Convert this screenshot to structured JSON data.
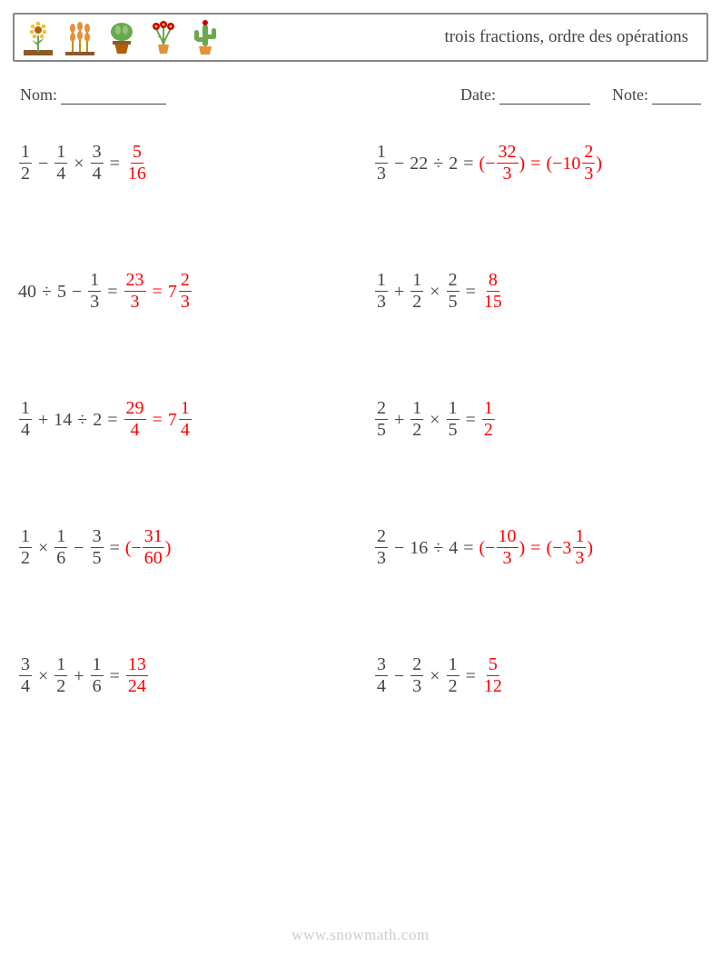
{
  "header": {
    "title": "trois fractions, ordre des opérations"
  },
  "meta": {
    "name_label": "Nom:",
    "date_label": "Date:",
    "note_label": "Note:",
    "name_underline_width": 116,
    "date_underline_width": 100,
    "note_underline_width": 54
  },
  "problems": [
    {
      "expr": [
        {
          "t": "frac",
          "n": "1",
          "d": "2"
        },
        {
          "t": "op",
          "v": "−"
        },
        {
          "t": "frac",
          "n": "1",
          "d": "4"
        },
        {
          "t": "op",
          "v": "×"
        },
        {
          "t": "frac",
          "n": "3",
          "d": "4"
        },
        {
          "t": "eq"
        }
      ],
      "ans": [
        {
          "t": "frac",
          "n": "5",
          "d": "16"
        }
      ]
    },
    {
      "expr": [
        {
          "t": "frac",
          "n": "1",
          "d": "3"
        },
        {
          "t": "op",
          "v": "−"
        },
        {
          "t": "txt",
          "v": "22"
        },
        {
          "t": "op",
          "v": "÷"
        },
        {
          "t": "txt",
          "v": "2"
        },
        {
          "t": "eq"
        }
      ],
      "ans": [
        {
          "t": "txt",
          "v": "(−"
        },
        {
          "t": "frac",
          "n": "32",
          "d": "3"
        },
        {
          "t": "txt",
          "v": ")"
        },
        {
          "t": "eq"
        },
        {
          "t": "txt",
          "v": "(−"
        },
        {
          "t": "mixed",
          "w": "10",
          "n": "2",
          "d": "3"
        },
        {
          "t": "txt",
          "v": ")"
        }
      ]
    },
    {
      "expr": [
        {
          "t": "txt",
          "v": "40"
        },
        {
          "t": "op",
          "v": "÷"
        },
        {
          "t": "txt",
          "v": "5"
        },
        {
          "t": "op",
          "v": "−"
        },
        {
          "t": "frac",
          "n": "1",
          "d": "3"
        },
        {
          "t": "eq"
        }
      ],
      "ans": [
        {
          "t": "frac",
          "n": "23",
          "d": "3"
        },
        {
          "t": "eq"
        },
        {
          "t": "mixed",
          "w": "7",
          "n": "2",
          "d": "3"
        }
      ]
    },
    {
      "expr": [
        {
          "t": "frac",
          "n": "1",
          "d": "3"
        },
        {
          "t": "op",
          "v": "+"
        },
        {
          "t": "frac",
          "n": "1",
          "d": "2"
        },
        {
          "t": "op",
          "v": "×"
        },
        {
          "t": "frac",
          "n": "2",
          "d": "5"
        },
        {
          "t": "eq"
        }
      ],
      "ans": [
        {
          "t": "frac",
          "n": "8",
          "d": "15"
        }
      ]
    },
    {
      "expr": [
        {
          "t": "frac",
          "n": "1",
          "d": "4"
        },
        {
          "t": "op",
          "v": "+"
        },
        {
          "t": "txt",
          "v": "14"
        },
        {
          "t": "op",
          "v": "÷"
        },
        {
          "t": "txt",
          "v": "2"
        },
        {
          "t": "eq"
        }
      ],
      "ans": [
        {
          "t": "frac",
          "n": "29",
          "d": "4"
        },
        {
          "t": "eq"
        },
        {
          "t": "mixed",
          "w": "7",
          "n": "1",
          "d": "4"
        }
      ]
    },
    {
      "expr": [
        {
          "t": "frac",
          "n": "2",
          "d": "5"
        },
        {
          "t": "op",
          "v": "+"
        },
        {
          "t": "frac",
          "n": "1",
          "d": "2"
        },
        {
          "t": "op",
          "v": "×"
        },
        {
          "t": "frac",
          "n": "1",
          "d": "5"
        },
        {
          "t": "eq"
        }
      ],
      "ans": [
        {
          "t": "frac",
          "n": "1",
          "d": "2"
        }
      ]
    },
    {
      "expr": [
        {
          "t": "frac",
          "n": "1",
          "d": "2"
        },
        {
          "t": "op",
          "v": "×"
        },
        {
          "t": "frac",
          "n": "1",
          "d": "6"
        },
        {
          "t": "op",
          "v": "−"
        },
        {
          "t": "frac",
          "n": "3",
          "d": "5"
        },
        {
          "t": "eq"
        }
      ],
      "ans": [
        {
          "t": "txt",
          "v": "(−"
        },
        {
          "t": "frac",
          "n": "31",
          "d": "60"
        },
        {
          "t": "txt",
          "v": ")"
        }
      ]
    },
    {
      "expr": [
        {
          "t": "frac",
          "n": "2",
          "d": "3"
        },
        {
          "t": "op",
          "v": "−"
        },
        {
          "t": "txt",
          "v": "16"
        },
        {
          "t": "op",
          "v": "÷"
        },
        {
          "t": "txt",
          "v": "4"
        },
        {
          "t": "eq"
        }
      ],
      "ans": [
        {
          "t": "txt",
          "v": "(−"
        },
        {
          "t": "frac",
          "n": "10",
          "d": "3"
        },
        {
          "t": "txt",
          "v": ")"
        },
        {
          "t": "eq"
        },
        {
          "t": "txt",
          "v": "(−"
        },
        {
          "t": "mixed",
          "w": "3",
          "n": "1",
          "d": "3"
        },
        {
          "t": "txt",
          "v": ")"
        }
      ]
    },
    {
      "expr": [
        {
          "t": "frac",
          "n": "3",
          "d": "4"
        },
        {
          "t": "op",
          "v": "×"
        },
        {
          "t": "frac",
          "n": "1",
          "d": "2"
        },
        {
          "t": "op",
          "v": "+"
        },
        {
          "t": "frac",
          "n": "1",
          "d": "6"
        },
        {
          "t": "eq"
        }
      ],
      "ans": [
        {
          "t": "frac",
          "n": "13",
          "d": "24"
        }
      ]
    },
    {
      "expr": [
        {
          "t": "frac",
          "n": "3",
          "d": "4"
        },
        {
          "t": "op",
          "v": "−"
        },
        {
          "t": "frac",
          "n": "2",
          "d": "3"
        },
        {
          "t": "op",
          "v": "×"
        },
        {
          "t": "frac",
          "n": "1",
          "d": "2"
        },
        {
          "t": "eq"
        }
      ],
      "ans": [
        {
          "t": "frac",
          "n": "5",
          "d": "12"
        }
      ]
    }
  ],
  "colors": {
    "text": "#444444",
    "answer": "#ff0000",
    "border": "#888888",
    "footer": "#cccccc"
  },
  "footer": {
    "text": "www.snowmath.com"
  }
}
